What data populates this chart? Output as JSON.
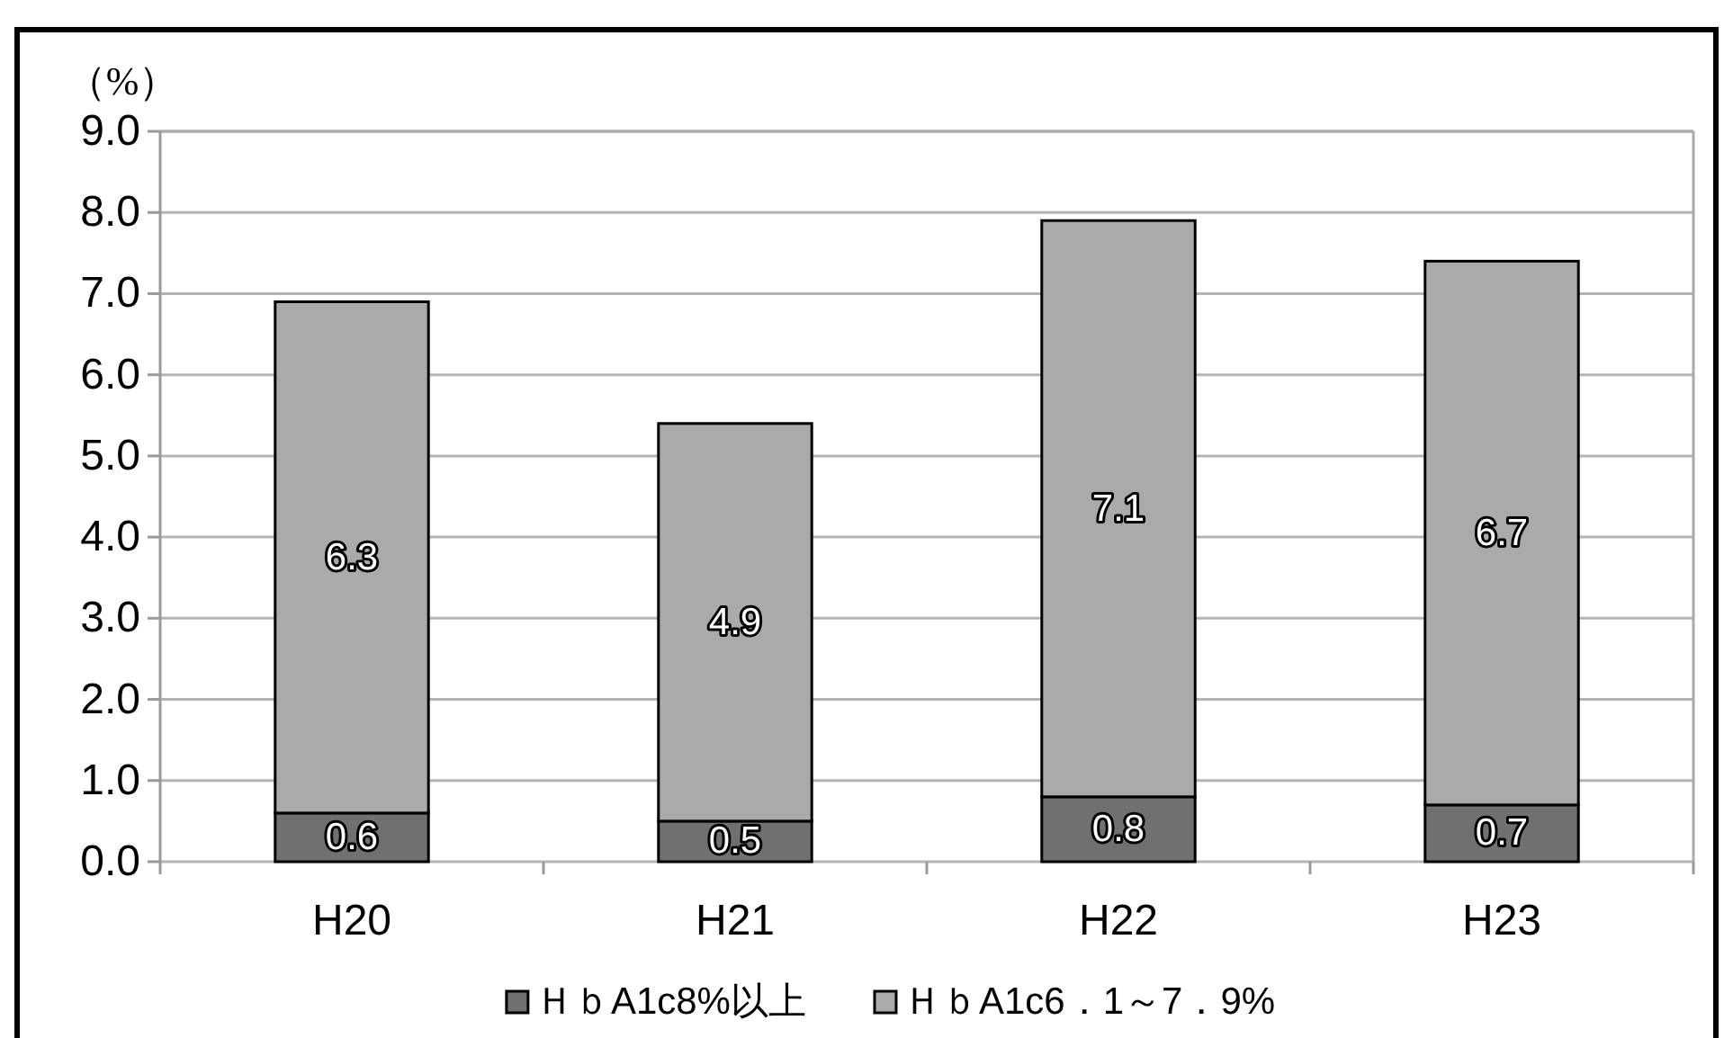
{
  "chart_data": {
    "type": "bar",
    "ylabel": "（%）",
    "categories": [
      "H20",
      "H21",
      "H22",
      "H23"
    ],
    "stacked": true,
    "series": [
      {
        "name": "ＨｂA1c8%以上",
        "color": "#707070",
        "values": [
          0.6,
          0.5,
          0.8,
          0.7
        ]
      },
      {
        "name": "ＨｂA1c6．1～7．9%",
        "color": "#aaaaaa",
        "values": [
          6.3,
          4.9,
          7.1,
          6.7
        ]
      }
    ],
    "ylim": [
      0,
      9
    ],
    "yticks": [
      {
        "value": 0,
        "label": "0.0"
      },
      {
        "value": 1,
        "label": "1.0"
      },
      {
        "value": 2,
        "label": "2.0"
      },
      {
        "value": 3,
        "label": "3.0"
      },
      {
        "value": 4,
        "label": "4.0"
      },
      {
        "value": 5,
        "label": "5.0"
      },
      {
        "value": 6,
        "label": "6.0"
      },
      {
        "value": 7,
        "label": "7.0"
      },
      {
        "value": 8,
        "label": "8.0"
      },
      {
        "value": 9,
        "label": "9.0"
      }
    ],
    "grid": "y",
    "legend": "bottom",
    "data_labels": true
  }
}
